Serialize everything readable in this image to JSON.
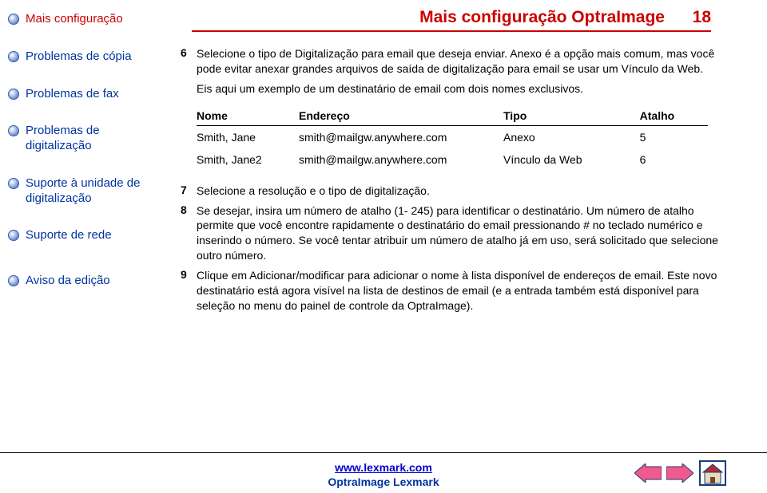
{
  "colors": {
    "accent_red": "#cc0000",
    "accent_blue": "#0033a0",
    "link_blue": "#0000cc",
    "brand_blue": "#0033a0",
    "bullet_border": "#335db8",
    "bullet_fill_light": "#b8c9e8",
    "arrow_fill": "#f05a8c",
    "arrow_stroke": "#1a3a7a",
    "home_wall": "#e8d8c0",
    "home_roof": "#b03030"
  },
  "sidebar": {
    "items": [
      {
        "label": "Mais configuração",
        "color_key": "accent_red"
      },
      {
        "label": "Problemas de cópia",
        "color_key": "accent_blue"
      },
      {
        "label": "Problemas de fax",
        "color_key": "accent_blue"
      },
      {
        "label": "Problemas de digitalização",
        "color_key": "accent_blue"
      },
      {
        "label": "Suporte à unidade de digitalização",
        "color_key": "accent_blue"
      },
      {
        "label": "Suporte de rede",
        "color_key": "accent_blue"
      },
      {
        "label": "Aviso da edição",
        "color_key": "accent_blue"
      }
    ]
  },
  "header": {
    "title": "Mais configuração OptraImage",
    "page_number": "18"
  },
  "steps": {
    "s6": {
      "num": "6",
      "text": "Selecione o tipo de Digitalização para email que deseja enviar. Anexo é a opção mais comum, mas você pode evitar anexar grandes arquivos de saída de digitalização para email se usar um Vínculo da Web.",
      "sub": "Eis aqui um exemplo de um destinatário de email com dois nomes exclusivos."
    },
    "s7": {
      "num": "7",
      "text": "Selecione a resolução e o tipo de digitalização."
    },
    "s8": {
      "num": "8",
      "text": "Se desejar, insira um número de atalho (1- 245) para identificar o destinatário. Um número de atalho permite que você encontre rapidamente o destinatário do email pressionando # no teclado numérico e inserindo o número. Se você tentar atribuir um número de atalho já em uso, será solicitado que selecione outro número."
    },
    "s9": {
      "num": "9",
      "text": "Clique em Adicionar/modificar para adicionar o nome à lista disponível de endereços de email. Este novo destinatário está agora visível na lista de destinos de email (e a entrada também está disponível para seleção no menu do painel de controle da OptraImage)."
    }
  },
  "table": {
    "headers": [
      "Nome",
      "Endereço",
      "Tipo",
      "Atalho"
    ],
    "rows": [
      [
        "Smith, Jane",
        "smith@mailgw.anywhere.com",
        "Anexo",
        "5"
      ],
      [
        "Smith, Jane2",
        "smith@mailgw.anywhere.com",
        "Vínculo da Web",
        "6"
      ]
    ],
    "col_widths": [
      "120px",
      "240px",
      "160px",
      "80px"
    ]
  },
  "footer": {
    "url": "www.lexmark.com",
    "brand": "OptraImage Lexmark"
  }
}
